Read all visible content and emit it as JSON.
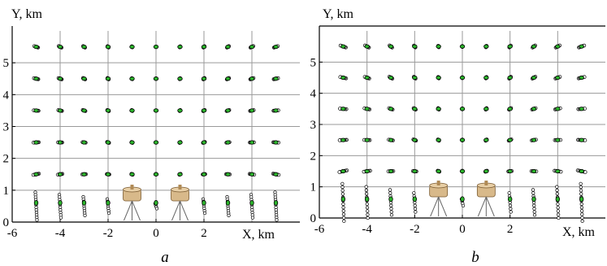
{
  "figure": {
    "panels": [
      "a",
      "b"
    ]
  },
  "chart_data": [
    {
      "type": "scatter",
      "panel": "a",
      "xlabel": "X, km",
      "ylabel": "Y, km",
      "xlim": [
        -6,
        6
      ],
      "ylim": [
        0,
        6
      ],
      "xticks": [
        "-6",
        "-4",
        "-2",
        "0",
        "2"
      ],
      "yticks": [
        "0",
        "1",
        "2",
        "3",
        "4",
        "5"
      ],
      "grid": true,
      "grid_x": [
        -4,
        -2,
        0,
        2,
        4
      ],
      "grid_y": [
        1,
        2,
        3,
        4,
        5
      ],
      "grid_rows_y": [
        1.5,
        2.5,
        3.5,
        4.5,
        5.5
      ],
      "grid_cols_x": [
        -5,
        -4,
        -3,
        -2,
        -1,
        0,
        1,
        2,
        3,
        4,
        5
      ],
      "bottom_row_y": 0.5,
      "point_color": "#2db52d",
      "outline_color": "#000000",
      "sensors_x": [
        -1,
        1
      ],
      "sensor_icon": "tripod-sensor-icon"
    },
    {
      "type": "scatter",
      "panel": "b",
      "xlabel": "X, km",
      "ylabel": "Y, km",
      "xlim": [
        -6,
        6
      ],
      "ylim": [
        0,
        6
      ],
      "xticks": [
        "-6",
        "-4",
        "-2",
        "0",
        "2"
      ],
      "yticks": [
        "0",
        "1",
        "2",
        "3",
        "4",
        "5"
      ],
      "grid": true,
      "grid_x": [
        -4,
        -2,
        0,
        2,
        4
      ],
      "grid_y": [
        1,
        2,
        3,
        4,
        5
      ],
      "grid_rows_y": [
        1.5,
        2.5,
        3.5,
        4.5,
        5.5
      ],
      "grid_cols_x": [
        -5,
        -4,
        -3,
        -2,
        -1,
        0,
        1,
        2,
        3,
        4,
        5
      ],
      "bottom_row_y": 0.5,
      "point_color": "#2db52d",
      "outline_color": "#000000",
      "sensors_x": [
        -1,
        1
      ],
      "sensor_icon": "tripod-sensor-icon"
    }
  ]
}
